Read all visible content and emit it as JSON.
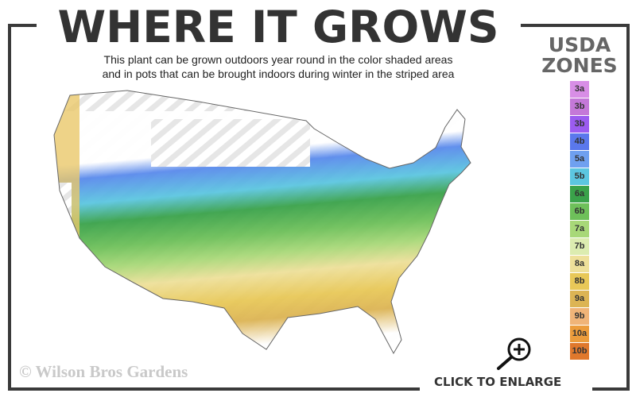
{
  "title": "WHERE IT GROWS",
  "subtitle": [
    "This plant can be grown outdoors year round in the color shaded areas",
    "and in pots that can be brought indoors during winter in the striped area"
  ],
  "legend": {
    "title": [
      "USDA",
      "ZONES"
    ],
    "zones": [
      {
        "label": "3a",
        "color": "#d88ee6"
      },
      {
        "label": "3b",
        "color": "#c478d8"
      },
      {
        "label": "3b",
        "color": "#9b5cf0"
      },
      {
        "label": "4b",
        "color": "#5a78ec"
      },
      {
        "label": "5a",
        "color": "#6fa0f0"
      },
      {
        "label": "5b",
        "color": "#5cc6e0"
      },
      {
        "label": "6a",
        "color": "#3aa24a"
      },
      {
        "label": "6b",
        "color": "#6ec05a"
      },
      {
        "label": "7a",
        "color": "#a8d878"
      },
      {
        "label": "7b",
        "color": "#dcecb0"
      },
      {
        "label": "8a",
        "color": "#eee09a"
      },
      {
        "label": "8b",
        "color": "#e8c858"
      },
      {
        "label": "9a",
        "color": "#dcb454"
      },
      {
        "label": "9b",
        "color": "#f0b478"
      },
      {
        "label": "10a",
        "color": "#ec9c3c"
      },
      {
        "label": "10b",
        "color": "#e0782c"
      }
    ]
  },
  "watermark": "© Wilson Bros Gardens",
  "enlarge": {
    "label": "CLICK TO ENLARGE",
    "icon": "zoom-in-icon"
  }
}
